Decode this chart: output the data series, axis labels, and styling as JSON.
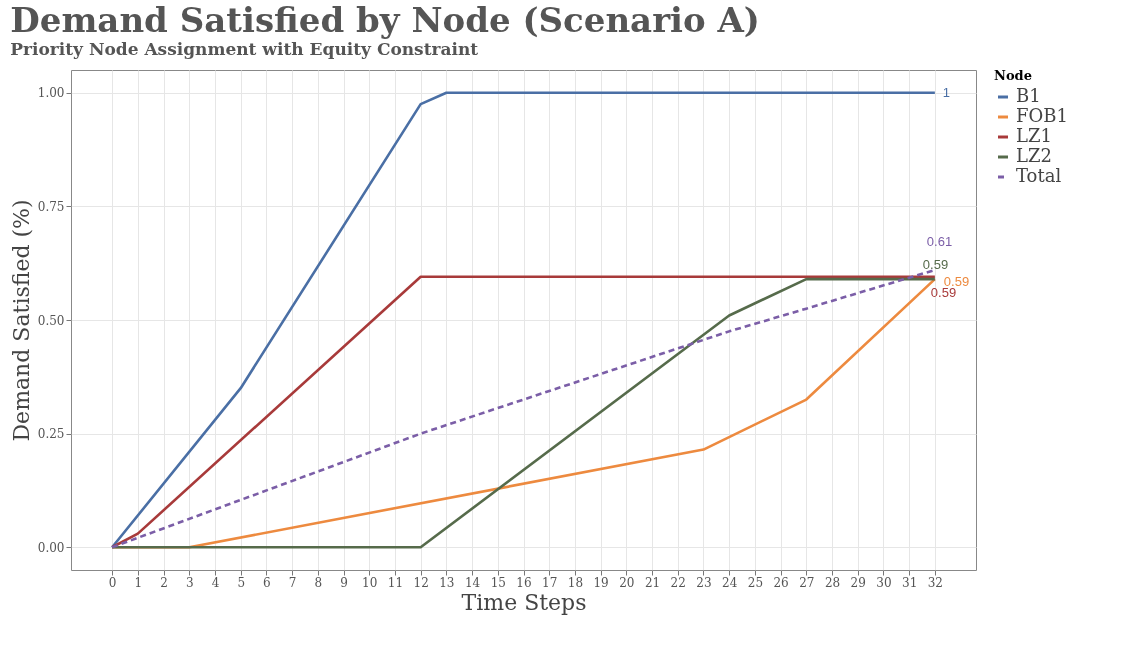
{
  "chart_data": {
    "type": "line",
    "title": "Demand Satisfied by Node (Scenario A)",
    "subtitle": "Priority Node Assignment with Equity Constraint",
    "xlabel": "Time Steps",
    "ylabel": "Demand Satisfied (%)",
    "legend_title": "Node",
    "legend": "right",
    "grid": true,
    "line_style": "solid",
    "marker": "none",
    "xlim": [
      -1.6,
      33.6
    ],
    "xticks": [
      0,
      1,
      2,
      3,
      4,
      5,
      6,
      7,
      8,
      9,
      10,
      11,
      12,
      13,
      14,
      15,
      16,
      17,
      18,
      19,
      20,
      21,
      22,
      23,
      24,
      25,
      26,
      27,
      28,
      29,
      30,
      31,
      32
    ],
    "ylim": [
      -0.05,
      1.05
    ],
    "yticks": [
      {
        "value": 0,
        "label": "0.00"
      },
      {
        "value": 0.25,
        "label": "0.25"
      },
      {
        "value": 0.5,
        "label": "0.50"
      },
      {
        "value": 0.75,
        "label": "0.75"
      },
      {
        "value": 1,
        "label": "1.00"
      }
    ],
    "series": [
      {
        "name": "B1",
        "color": "#4a6fa5",
        "x": [
          0,
          5,
          12,
          13,
          32
        ],
        "values": [
          0,
          0.35,
          0.975,
          1,
          1
        ],
        "value_labels": [
          null,
          null,
          null,
          null,
          "1"
        ]
      },
      {
        "name": "FOB1",
        "color": "#ed8a3f",
        "x": [
          0,
          3,
          23,
          27,
          32
        ],
        "values": [
          0,
          0,
          0.215,
          0.325,
          0.59
        ],
        "value_labels": [
          null,
          null,
          null,
          null,
          "0.59"
        ]
      },
      {
        "name": "LZ1",
        "color": "#a83a3a",
        "x": [
          0,
          1,
          12,
          32
        ],
        "values": [
          0,
          0.03,
          0.595,
          0.595
        ],
        "value_labels": [
          null,
          null,
          null,
          "0.59"
        ]
      },
      {
        "name": "LZ2",
        "color": "#566b4b",
        "x": [
          0,
          12,
          24,
          27,
          32
        ],
        "values": [
          0,
          0,
          0.51,
          0.59,
          0.59
        ],
        "value_labels": [
          null,
          null,
          null,
          null,
          "0.59"
        ]
      },
      {
        "name": "Total",
        "color": "#7b5ea7",
        "line_style": "dashed",
        "x": [
          0,
          12,
          24,
          27,
          32
        ],
        "values": [
          0,
          0.25,
          0.475,
          0.525,
          0.61
        ],
        "value_labels": [
          null,
          null,
          null,
          null,
          "0.61"
        ]
      }
    ]
  }
}
